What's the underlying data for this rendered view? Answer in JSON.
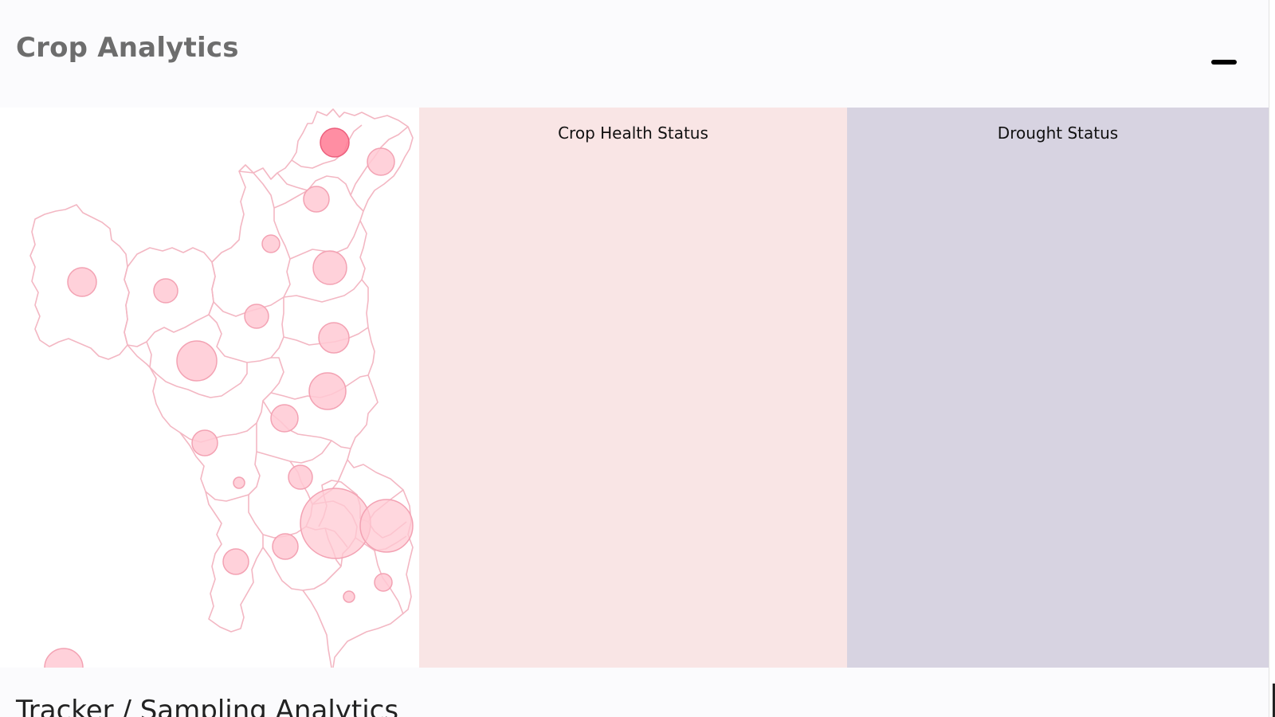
{
  "app": {
    "title": "Crop Analytics"
  },
  "header": {
    "menu_icon": "minus-icon"
  },
  "panels": {
    "crop_health": {
      "title": "Crop Health Status"
    },
    "drought": {
      "title": "Drought Status"
    }
  },
  "footer": {
    "section_title": "Tracker / Sampling Analytics"
  },
  "colors": {
    "map_boundary": "#f3b7c3",
    "bubble_fill": "#ffc9d3",
    "bubble_highlight": "#ff7a93",
    "health_panel_bg": "#f9e5e5",
    "drought_panel_bg": "#d7d3e1"
  }
}
